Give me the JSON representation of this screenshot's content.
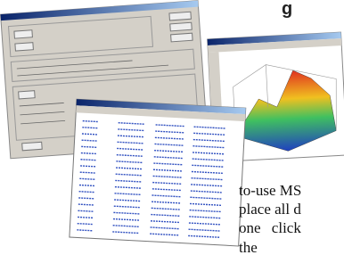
{
  "heading": "g",
  "text_lines": [
    "to-use MS",
    "place all d",
    "one  click",
    "the"
  ]
}
